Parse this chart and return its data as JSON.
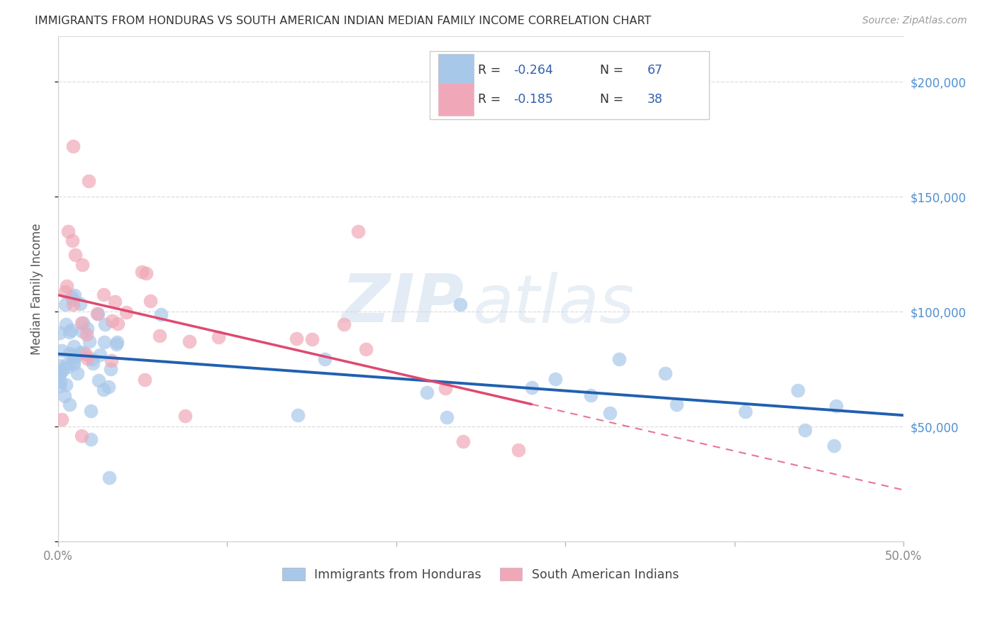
{
  "title": "IMMIGRANTS FROM HONDURAS VS SOUTH AMERICAN INDIAN MEDIAN FAMILY INCOME CORRELATION CHART",
  "source": "Source: ZipAtlas.com",
  "ylabel": "Median Family Income",
  "right_ytick_labels": [
    "$50,000",
    "$100,000",
    "$150,000",
    "$200,000"
  ],
  "right_ytick_values": [
    50000,
    100000,
    150000,
    200000
  ],
  "legend_blue_R": "-0.264",
  "legend_blue_N": "67",
  "legend_pink_R": "-0.185",
  "legend_pink_N": "38",
  "legend_blue_label": "Immigrants from Honduras",
  "legend_pink_label": "South American Indians",
  "blue_color": "#a8c8ea",
  "pink_color": "#f0a8b8",
  "blue_line_color": "#2060b0",
  "pink_line_color": "#e04870",
  "watermark_zip": "ZIP",
  "watermark_atlas": "atlas",
  "xlim": [
    0.0,
    0.5
  ],
  "ylim": [
    0,
    220000
  ],
  "legend_R_color": "#3060b0",
  "legend_N_color": "#3060b0",
  "legend_R_label_color": "#333333",
  "title_color": "#333333",
  "source_color": "#999999",
  "ylabel_color": "#555555",
  "grid_color": "#dddddd",
  "spine_color": "#cccccc",
  "xtick_color": "#888888",
  "ytick_right_color": "#5090d0"
}
